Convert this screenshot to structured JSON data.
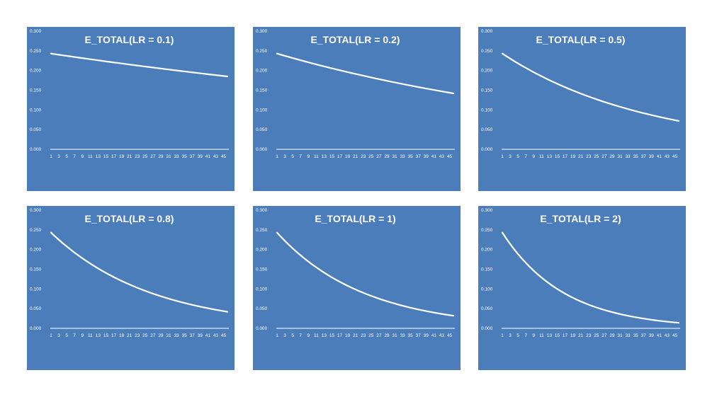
{
  "chart_data": [
    {
      "type": "area",
      "title": "E_TOTAL(LR = 0.1)",
      "lr": 0.1,
      "series": [
        {
          "name": "E_TOTAL",
          "start": 0.243,
          "end": 0.185,
          "points": 46
        }
      ],
      "ylim": [
        0,
        0.3
      ],
      "yticks": [
        "0.000",
        "0.050",
        "0.100",
        "0.150",
        "0.200",
        "0.250",
        "0.300"
      ],
      "xticks": [
        "1",
        "3",
        "5",
        "7",
        "9",
        "11",
        "13",
        "15",
        "17",
        "19",
        "21",
        "23",
        "25",
        "27",
        "29",
        "31",
        "33",
        "35",
        "37",
        "39",
        "41",
        "43",
        "45"
      ],
      "background": "#4b7dbb",
      "line_color": "#ffffff"
    },
    {
      "type": "area",
      "title": "E_TOTAL(LR = 0.2)",
      "lr": 0.2,
      "series": [
        {
          "name": "E_TOTAL",
          "start": 0.243,
          "end": 0.142,
          "points": 46
        }
      ],
      "ylim": [
        0,
        0.3
      ],
      "yticks": [
        "0.000",
        "0.050",
        "0.100",
        "0.150",
        "0.200",
        "0.250",
        "0.300"
      ],
      "xticks": [
        "1",
        "3",
        "5",
        "7",
        "9",
        "11",
        "13",
        "15",
        "17",
        "19",
        "21",
        "23",
        "25",
        "27",
        "29",
        "31",
        "33",
        "35",
        "37",
        "39",
        "41",
        "43",
        "45"
      ],
      "background": "#4b7dbb",
      "line_color": "#ffffff"
    },
    {
      "type": "area",
      "title": "E_TOTAL(LR = 0.5)",
      "lr": 0.5,
      "series": [
        {
          "name": "E_TOTAL",
          "start": 0.243,
          "end": 0.072,
          "points": 46
        }
      ],
      "ylim": [
        0,
        0.3
      ],
      "yticks": [
        "0.000",
        "0.050",
        "0.100",
        "0.150",
        "0.200",
        "0.250",
        "0.300"
      ],
      "xticks": [
        "1",
        "3",
        "5",
        "7",
        "9",
        "11",
        "13",
        "15",
        "17",
        "19",
        "21",
        "23",
        "25",
        "27",
        "29",
        "31",
        "33",
        "35",
        "37",
        "39",
        "41",
        "43",
        "45"
      ],
      "background": "#4b7dbb",
      "line_color": "#ffffff"
    },
    {
      "type": "area",
      "title": "E_TOTAL(LR = 0.8)",
      "lr": 0.8,
      "series": [
        {
          "name": "E_TOTAL",
          "start": 0.243,
          "end": 0.042,
          "points": 46
        }
      ],
      "ylim": [
        0,
        0.3
      ],
      "yticks": [
        "0.000",
        "0.050",
        "0.100",
        "0.150",
        "0.200",
        "0.250",
        "0.300"
      ],
      "xticks": [
        "1",
        "3",
        "5",
        "7",
        "9",
        "11",
        "13",
        "15",
        "17",
        "19",
        "21",
        "23",
        "25",
        "27",
        "29",
        "31",
        "33",
        "35",
        "37",
        "39",
        "41",
        "43",
        "45"
      ],
      "background": "#4b7dbb",
      "line_color": "#ffffff"
    },
    {
      "type": "area",
      "title": "E_TOTAL(LR = 1)",
      "lr": 1,
      "series": [
        {
          "name": "E_TOTAL",
          "start": 0.243,
          "end": 0.032,
          "points": 46
        }
      ],
      "ylim": [
        0,
        0.3
      ],
      "yticks": [
        "0.000",
        "0.050",
        "0.100",
        "0.150",
        "0.200",
        "0.250",
        "0.300"
      ],
      "xticks": [
        "1",
        "3",
        "5",
        "7",
        "9",
        "11",
        "13",
        "15",
        "17",
        "19",
        "21",
        "23",
        "25",
        "27",
        "29",
        "31",
        "33",
        "35",
        "37",
        "39",
        "41",
        "43",
        "45"
      ],
      "background": "#4b7dbb",
      "line_color": "#ffffff"
    },
    {
      "type": "area",
      "title": "E_TOTAL(LR = 2)",
      "lr": 2,
      "series": [
        {
          "name": "E_TOTAL",
          "start": 0.243,
          "end": 0.014,
          "points": 46
        }
      ],
      "ylim": [
        0,
        0.3
      ],
      "yticks": [
        "0.000",
        "0.050",
        "0.100",
        "0.150",
        "0.200",
        "0.250",
        "0.300"
      ],
      "xticks": [
        "1",
        "3",
        "5",
        "7",
        "9",
        "11",
        "13",
        "15",
        "17",
        "19",
        "21",
        "23",
        "25",
        "27",
        "29",
        "31",
        "33",
        "35",
        "37",
        "39",
        "41",
        "43",
        "45"
      ],
      "background": "#4b7dbb",
      "line_color": "#ffffff"
    }
  ]
}
